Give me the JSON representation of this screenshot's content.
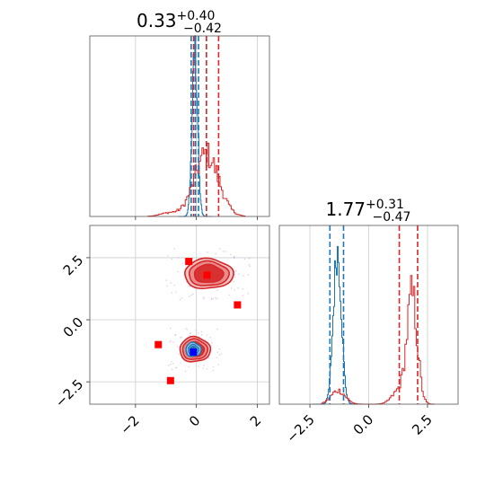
{
  "chart_data": [
    {
      "type": "histogram",
      "panel": "top-left",
      "title": {
        "value": "0.33",
        "plus": "+0.40",
        "minus": "−0.42"
      },
      "xlim": [
        -3.5,
        2.4
      ],
      "xticks": [
        -2,
        0,
        2
      ],
      "grid": true,
      "series": [
        {
          "color": "#1f77b4",
          "quantile_lines": [
            -0.17,
            -0.03,
            0.07
          ]
        },
        {
          "color": "#d62728",
          "quantile_lines": [
            -0.09,
            0.33,
            0.73
          ]
        }
      ]
    },
    {
      "type": "histogram",
      "panel": "bottom-right",
      "title": {
        "value": "1.77",
        "plus": "+0.31",
        "minus": "−0.47"
      },
      "xlim": [
        -3.8,
        3.8
      ],
      "xticks": [
        -2.5,
        0.0,
        2.5
      ],
      "xtick_labels": [
        "−2.5",
        "0.0",
        "2.5"
      ],
      "grid": true,
      "series": [
        {
          "color": "#1f77b4",
          "quantile_lines": [
            -1.65,
            -1.07
          ]
        },
        {
          "color": "#d62728",
          "quantile_lines": [
            1.3,
            2.08
          ]
        }
      ]
    },
    {
      "type": "scatter",
      "panel": "bottom-left",
      "xlim": [
        -3.5,
        2.4
      ],
      "ylim": [
        -3.4,
        3.8
      ],
      "xticks": [
        -2,
        0,
        2
      ],
      "xtick_labels": [
        "−2",
        "0",
        "2"
      ],
      "yticks": [
        -2.5,
        0.0,
        2.5
      ],
      "ytick_labels": [
        "−2.5",
        "0.0",
        "2.5"
      ],
      "grid": true,
      "contours": [
        {
          "color": "#d62728",
          "center": [
            0.4,
            1.85
          ],
          "spread": [
            0.8,
            0.6
          ]
        },
        {
          "color": "#d62728",
          "center": [
            -0.05,
            -1.2
          ],
          "spread": [
            0.5,
            0.5
          ]
        },
        {
          "color": "#1f77b4",
          "center": [
            -0.1,
            -1.2
          ],
          "spread": [
            0.25,
            0.28
          ]
        }
      ],
      "markers": [
        {
          "x": -0.25,
          "y": 2.35,
          "color": "#ff0000"
        },
        {
          "x": 0.35,
          "y": 1.8,
          "color": "#ff0000"
        },
        {
          "x": 1.35,
          "y": 0.6,
          "color": "#ff0000"
        },
        {
          "x": -1.25,
          "y": -1.0,
          "color": "#ff0000"
        },
        {
          "x": -0.85,
          "y": -2.45,
          "color": "#ff0000"
        },
        {
          "x": -0.1,
          "y": -1.3,
          "color": "#0000ff"
        }
      ]
    }
  ]
}
